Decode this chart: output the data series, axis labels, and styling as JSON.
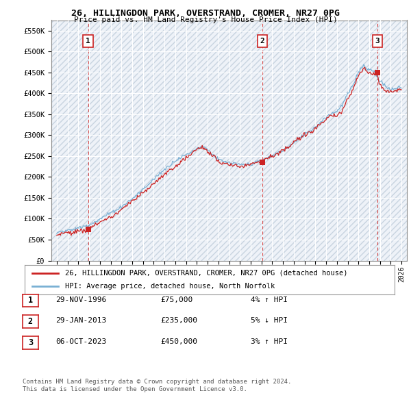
{
  "title": "26, HILLINGDON PARK, OVERSTRAND, CROMER, NR27 0PG",
  "subtitle": "Price paid vs. HM Land Registry's House Price Index (HPI)",
  "ylabel_ticks": [
    "£0",
    "£50K",
    "£100K",
    "£150K",
    "£200K",
    "£250K",
    "£300K",
    "£350K",
    "£400K",
    "£450K",
    "£500K",
    "£550K"
  ],
  "ytick_values": [
    0,
    50000,
    100000,
    150000,
    200000,
    250000,
    300000,
    350000,
    400000,
    450000,
    500000,
    550000
  ],
  "ylim": [
    0,
    575000
  ],
  "xmin_year": 1993.5,
  "xmax_year": 2026.5,
  "xtick_years": [
    1994,
    1995,
    1996,
    1997,
    1998,
    1999,
    2000,
    2001,
    2002,
    2003,
    2004,
    2005,
    2006,
    2007,
    2008,
    2009,
    2010,
    2011,
    2012,
    2013,
    2014,
    2015,
    2016,
    2017,
    2018,
    2019,
    2020,
    2021,
    2022,
    2023,
    2024,
    2025,
    2026
  ],
  "sale_dates": [
    1996.91,
    2013.08,
    2023.76
  ],
  "sale_prices": [
    75000,
    235000,
    450000
  ],
  "sale_labels": [
    "1",
    "2",
    "3"
  ],
  "hpi_color": "#7ab0d4",
  "price_color": "#cc2222",
  "vline_color": "#cc2222",
  "bg_hatch_color": "#d0d8e8",
  "chart_bg": "#e8eef5",
  "legend_label_price": "26, HILLINGDON PARK, OVERSTRAND, CROMER, NR27 0PG (detached house)",
  "legend_label_hpi": "HPI: Average price, detached house, North Norfolk",
  "table_rows": [
    {
      "num": "1",
      "date": "29-NOV-1996",
      "price": "£75,000",
      "hpi": "4% ↑ HPI"
    },
    {
      "num": "2",
      "date": "29-JAN-2013",
      "price": "£235,000",
      "hpi": "5% ↓ HPI"
    },
    {
      "num": "3",
      "date": "06-OCT-2023",
      "price": "£450,000",
      "hpi": "3% ↑ HPI"
    }
  ],
  "footer": "Contains HM Land Registry data © Crown copyright and database right 2024.\nThis data is licensed under the Open Government Licence v3.0."
}
